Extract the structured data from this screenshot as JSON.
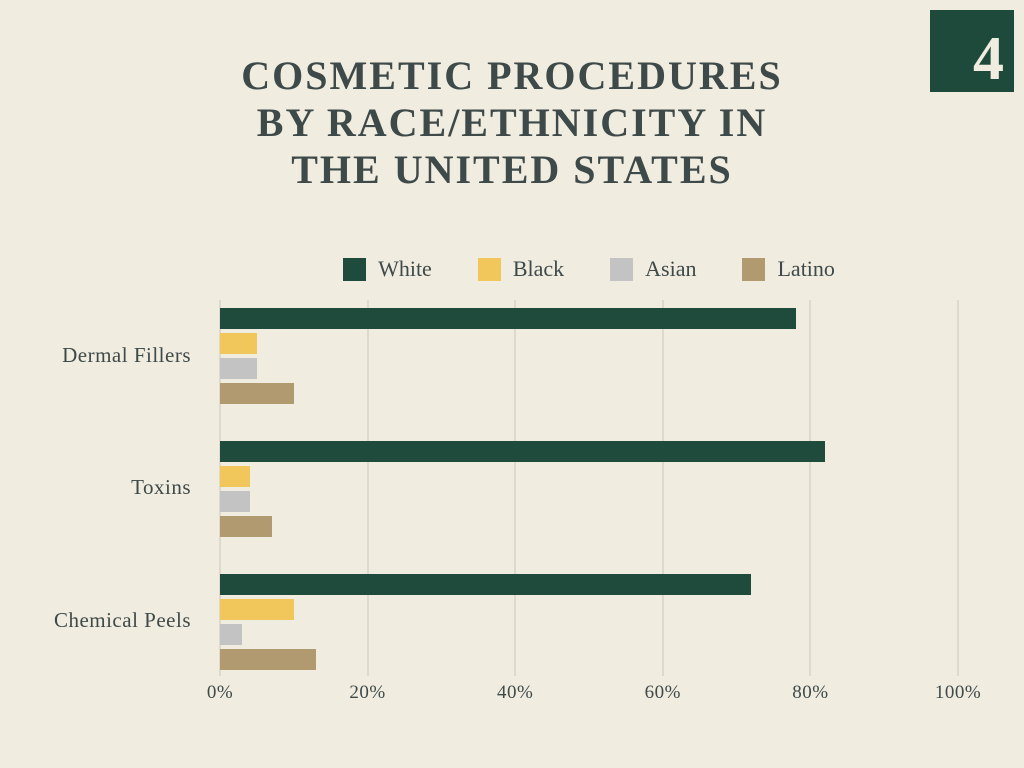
{
  "page": {
    "bg_color": "#f1ece0",
    "text_color": "#3e4a49"
  },
  "logo": {
    "text": "4",
    "bg_color": "#1d4a3a",
    "text_color": "#f1ece0"
  },
  "title": {
    "lines": [
      "COSMETIC PROCEDURES",
      "BY RACE/ETHNICITY IN",
      "THE UNITED STATES"
    ],
    "color": "#3e4a49"
  },
  "chart_data": {
    "type": "bar",
    "orientation": "horizontal",
    "title": "Cosmetic Procedures by Race/Ethnicity in the United States",
    "categories": [
      "Dermal Fillers",
      "Toxins",
      "Chemical Peels"
    ],
    "series": [
      {
        "name": "White",
        "color": "#1e4b3c",
        "values": [
          78,
          82,
          72
        ]
      },
      {
        "name": "Black",
        "color": "#f1c75b",
        "values": [
          5,
          4,
          10
        ]
      },
      {
        "name": "Asian",
        "color": "#c3c3c3",
        "values": [
          5,
          4,
          3
        ]
      },
      {
        "name": "Latino",
        "color": "#b29a70",
        "values": [
          10,
          7,
          13
        ]
      }
    ],
    "xlim": [
      0,
      100
    ],
    "x_ticks": [
      "0%",
      "20%",
      "40%",
      "60%",
      "80%",
      "100%"
    ],
    "x_tick_values": [
      0,
      20,
      40,
      60,
      80,
      100
    ],
    "grid": true,
    "gridline_color": "#ccc6b8",
    "legend_position": "top"
  }
}
